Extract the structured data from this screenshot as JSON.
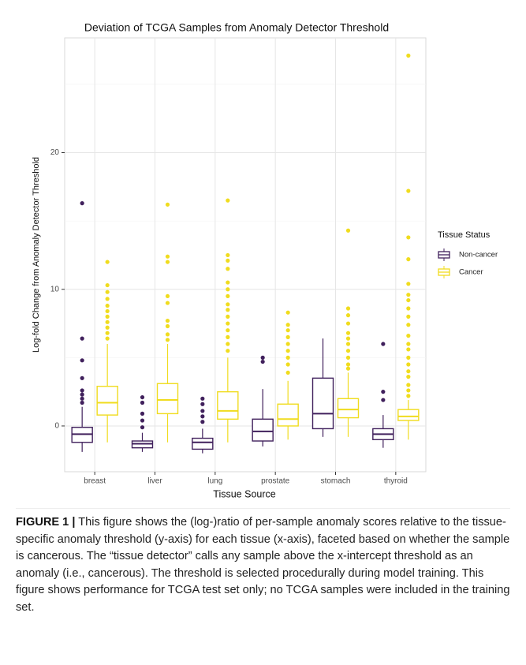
{
  "chart_data": {
    "type": "box",
    "title": "Deviation of TCGA Samples from Anomaly Detector Threshold",
    "x_label": "Tissue Source",
    "y_label": "Log-fold Change from Anomaly Detector Threshold",
    "legend_title": "Tissue Status",
    "legend_position": "right",
    "grid": true,
    "categories": [
      "breast",
      "liver",
      "lung",
      "prostate",
      "stomach",
      "thyroid"
    ],
    "ylim": [
      -3.35,
      28.4
    ],
    "yticks": [
      0,
      10,
      20
    ],
    "minor_yticks": [
      5,
      15,
      25
    ],
    "series": [
      {
        "name": "Non-cancer",
        "color": "#40205c",
        "boxes": [
          {
            "min": -1.9,
            "q1": -1.2,
            "median": -0.6,
            "q3": -0.1,
            "max": 1.4,
            "outliers": [
              16.3,
              6.4,
              4.8,
              3.5,
              2.6,
              2.3,
              2.0,
              1.7
            ]
          },
          {
            "min": -1.9,
            "q1": -1.6,
            "median": -1.3,
            "q3": -1.1,
            "max": -0.5,
            "outliers": [
              2.1,
              1.7,
              0.9,
              0.4,
              -0.1
            ]
          },
          {
            "min": -2.0,
            "q1": -1.7,
            "median": -1.2,
            "q3": -0.9,
            "max": -0.2,
            "outliers": [
              2.0,
              1.6,
              1.1,
              0.7,
              0.3
            ]
          },
          {
            "min": -1.5,
            "q1": -1.1,
            "median": -0.4,
            "q3": 0.5,
            "max": 2.7,
            "outliers": [
              5.0,
              4.7
            ]
          },
          {
            "min": -0.8,
            "q1": -0.2,
            "median": 0.9,
            "q3": 3.5,
            "max": 6.4,
            "outliers": []
          },
          {
            "min": -1.6,
            "q1": -1.0,
            "median": -0.6,
            "q3": -0.2,
            "max": 0.8,
            "outliers": [
              6.0,
              2.5,
              1.9
            ]
          }
        ]
      },
      {
        "name": "Cancer",
        "color": "#f0dc1e",
        "boxes": [
          {
            "min": -1.2,
            "q1": 0.8,
            "median": 1.7,
            "q3": 2.9,
            "max": 6.0,
            "outliers": [
              12.0,
              10.3,
              9.8,
              9.3,
              8.8,
              8.4,
              8.0,
              7.6,
              7.2,
              6.8,
              6.4
            ]
          },
          {
            "min": -1.2,
            "q1": 0.9,
            "median": 1.9,
            "q3": 3.1,
            "max": 6.0,
            "outliers": [
              16.2,
              12.4,
              12.0,
              9.5,
              9.0,
              7.7,
              7.3,
              6.7,
              6.3
            ]
          },
          {
            "min": -1.2,
            "q1": 0.5,
            "median": 1.1,
            "q3": 2.5,
            "max": 5.0,
            "outliers": [
              16.5,
              12.5,
              12.1,
              11.5,
              10.5,
              10.0,
              9.5,
              8.9,
              8.5,
              8.0,
              7.5,
              7.0,
              6.5,
              6.0,
              5.5
            ]
          },
          {
            "min": -1.0,
            "q1": 0.0,
            "median": 0.5,
            "q3": 1.6,
            "max": 3.3,
            "outliers": [
              8.3,
              7.4,
              7.0,
              6.5,
              6.0,
              5.5,
              5.0,
              4.5,
              3.9
            ]
          },
          {
            "min": -0.8,
            "q1": 0.6,
            "median": 1.2,
            "q3": 2.0,
            "max": 3.9,
            "outliers": [
              14.3,
              8.6,
              8.1,
              7.5,
              6.8,
              6.4,
              6.0,
              5.5,
              5.0,
              4.5,
              4.2
            ]
          },
          {
            "min": -1.0,
            "q1": 0.4,
            "median": 0.7,
            "q3": 1.2,
            "max": 1.9,
            "outliers": [
              27.1,
              17.2,
              13.8,
              12.2,
              10.4,
              9.6,
              9.2,
              8.6,
              8.0,
              7.4,
              6.6,
              6.0,
              5.6,
              5.0,
              4.5,
              4.0,
              3.6,
              3.0,
              2.6,
              2.2
            ]
          }
        ]
      }
    ]
  },
  "caption": {
    "label": "FIGURE 1 |",
    "text": "This figure shows the (log-)ratio of per-sample anomaly scores relative to the tissue-specific anomaly threshold (y-axis) for each tissue (x-axis), faceted based on whether the sample is cancerous. The “tissue detector” calls any sample above the x-intercept threshold as an anomaly (i.e., cancerous). The threshold is selected procedurally during model training. This figure shows performance for TCGA test set only; no TCGA samples were included in the training set."
  }
}
